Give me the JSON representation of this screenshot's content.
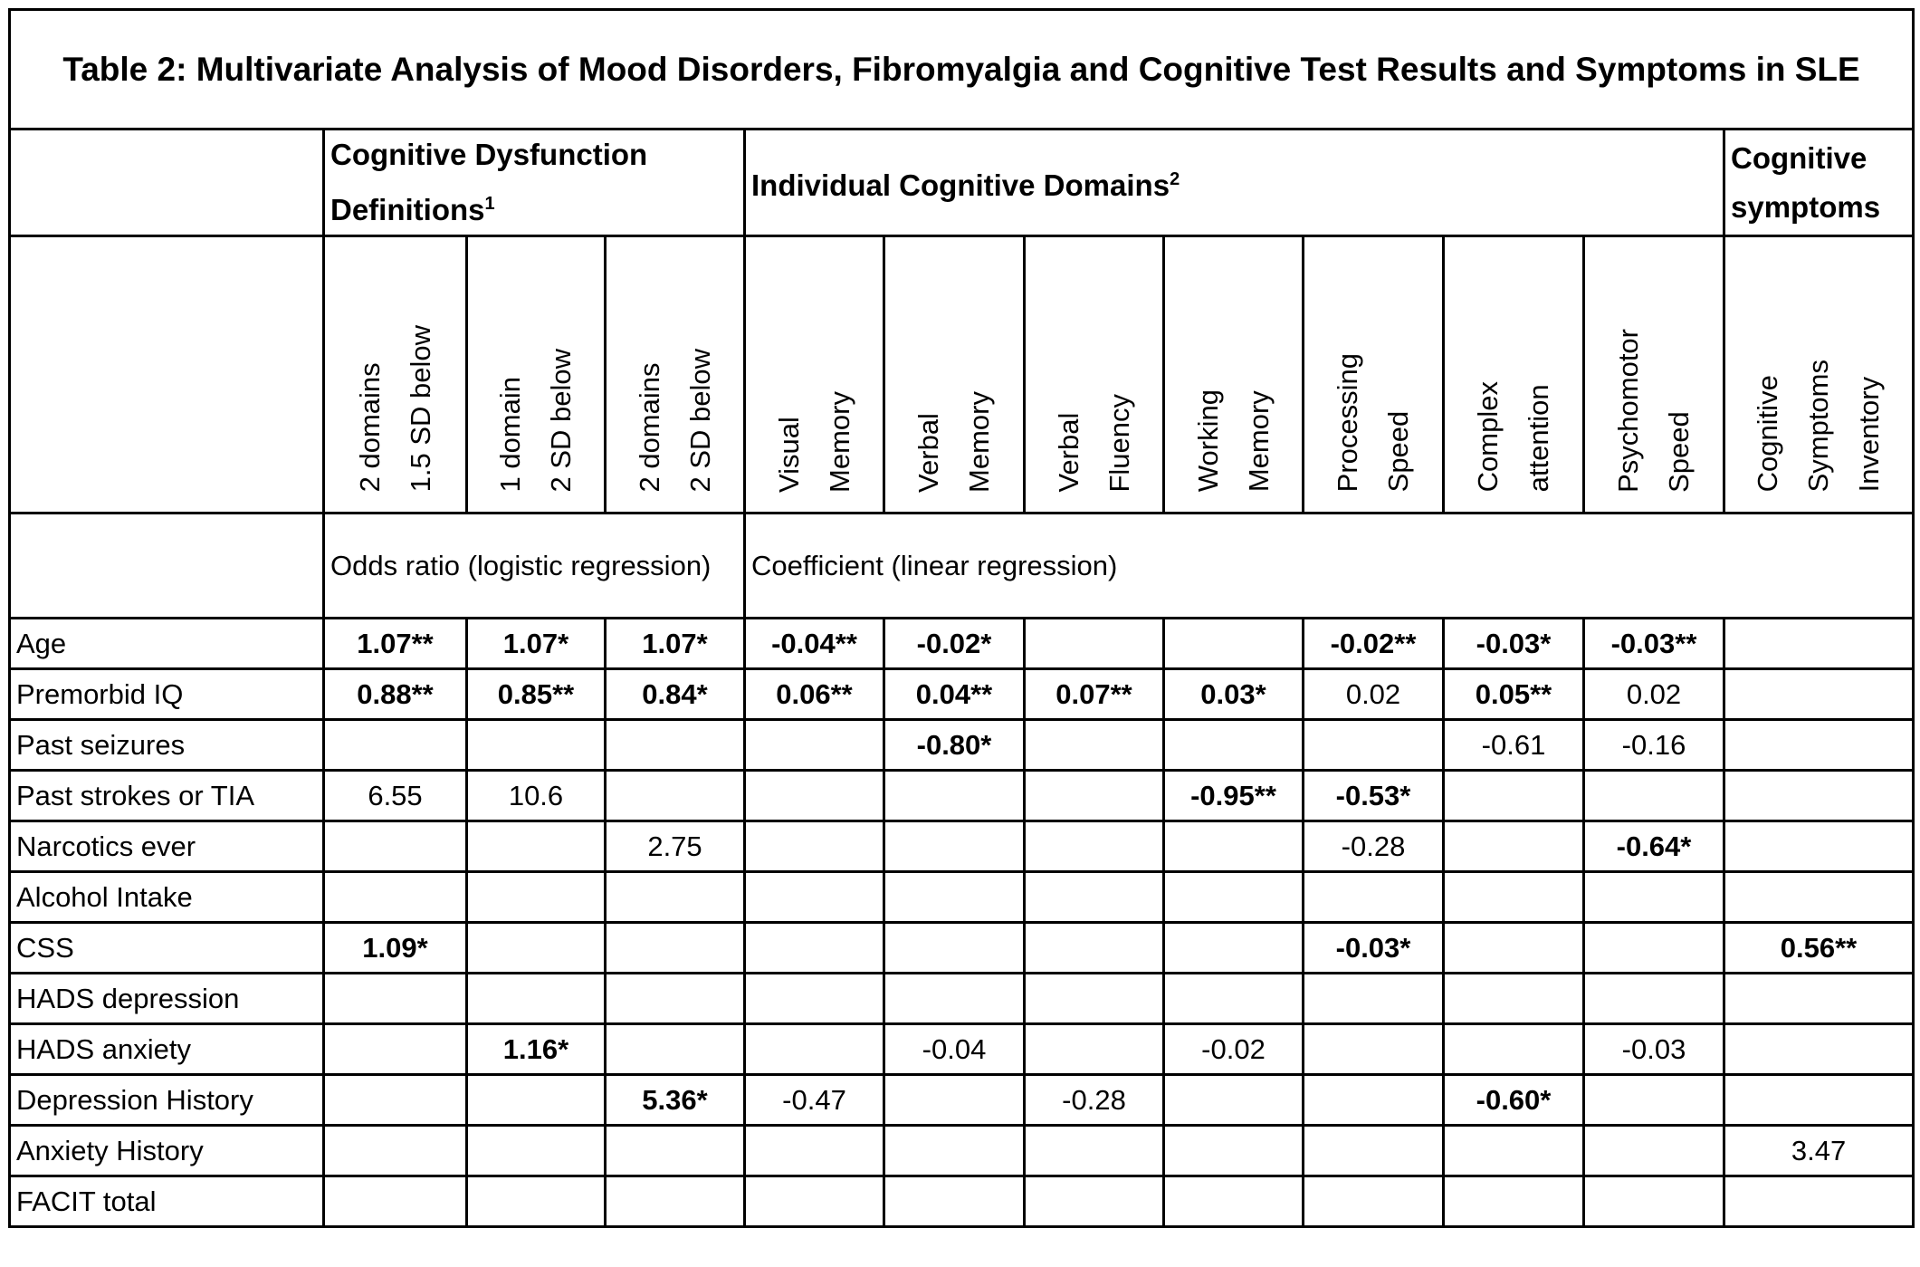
{
  "title": "Table 2: Multivariate Analysis of Mood Disorders, Fibromyalgia and Cognitive Test Results and Symptoms in SLE",
  "groups": [
    {
      "label": "Cognitive Dysfunction Definitions",
      "sup": "1",
      "span": 3
    },
    {
      "label": "Individual Cognitive Domains",
      "sup": "2",
      "span": 7
    },
    {
      "label": "Cognitive symptoms",
      "sup": "",
      "span": 1
    }
  ],
  "columns": [
    [
      "2 domains",
      "1.5 SD below"
    ],
    [
      "1 domain",
      "2 SD below"
    ],
    [
      "2 domains",
      "2 SD below"
    ],
    [
      "Visual",
      "Memory"
    ],
    [
      "Verbal",
      "Memory"
    ],
    [
      "Verbal",
      "Fluency"
    ],
    [
      "Working",
      "Memory"
    ],
    [
      "Processing",
      "Speed"
    ],
    [
      "Complex",
      "attention"
    ],
    [
      "Psychomotor",
      "Speed"
    ],
    [
      "Cognitive",
      "Symptoms",
      "Inventory"
    ]
  ],
  "methods": [
    {
      "label": "Odds ratio (logistic regression)",
      "span": 3
    },
    {
      "label": "Coefficient (linear regression)",
      "span": 8
    }
  ],
  "rows": [
    {
      "label": "Age",
      "cells": [
        {
          "v": "1.07**",
          "b": true
        },
        {
          "v": "1.07*",
          "b": true
        },
        {
          "v": "1.07*",
          "b": true
        },
        {
          "v": "-0.04**",
          "b": true
        },
        {
          "v": "-0.02*",
          "b": true
        },
        {
          "v": ""
        },
        {
          "v": ""
        },
        {
          "v": "-0.02**",
          "b": true
        },
        {
          "v": "-0.03*",
          "b": true
        },
        {
          "v": "-0.03**",
          "b": true
        },
        {
          "v": ""
        }
      ]
    },
    {
      "label": "Premorbid IQ",
      "cells": [
        {
          "v": "0.88**",
          "b": true
        },
        {
          "v": "0.85**",
          "b": true
        },
        {
          "v": "0.84*",
          "b": true
        },
        {
          "v": "0.06**",
          "b": true
        },
        {
          "v": "0.04**",
          "b": true
        },
        {
          "v": "0.07**",
          "b": true
        },
        {
          "v": "0.03*",
          "b": true
        },
        {
          "v": "0.02"
        },
        {
          "v": "0.05**",
          "b": true
        },
        {
          "v": "0.02"
        },
        {
          "v": ""
        }
      ]
    },
    {
      "label": "Past seizures",
      "cells": [
        {
          "v": ""
        },
        {
          "v": ""
        },
        {
          "v": ""
        },
        {
          "v": ""
        },
        {
          "v": "-0.80*",
          "b": true
        },
        {
          "v": ""
        },
        {
          "v": ""
        },
        {
          "v": ""
        },
        {
          "v": "-0.61"
        },
        {
          "v": "-0.16"
        },
        {
          "v": ""
        }
      ]
    },
    {
      "label": "Past strokes or TIA",
      "cells": [
        {
          "v": "6.55"
        },
        {
          "v": "10.6"
        },
        {
          "v": ""
        },
        {
          "v": ""
        },
        {
          "v": ""
        },
        {
          "v": ""
        },
        {
          "v": "-0.95**",
          "b": true
        },
        {
          "v": "-0.53*",
          "b": true
        },
        {
          "v": ""
        },
        {
          "v": ""
        },
        {
          "v": ""
        }
      ]
    },
    {
      "label": "Narcotics ever",
      "cells": [
        {
          "v": ""
        },
        {
          "v": ""
        },
        {
          "v": "2.75"
        },
        {
          "v": ""
        },
        {
          "v": ""
        },
        {
          "v": ""
        },
        {
          "v": ""
        },
        {
          "v": "-0.28"
        },
        {
          "v": ""
        },
        {
          "v": "-0.64*",
          "b": true
        },
        {
          "v": ""
        }
      ]
    },
    {
      "label": "Alcohol Intake",
      "cells": [
        {
          "v": ""
        },
        {
          "v": ""
        },
        {
          "v": ""
        },
        {
          "v": ""
        },
        {
          "v": ""
        },
        {
          "v": ""
        },
        {
          "v": ""
        },
        {
          "v": ""
        },
        {
          "v": ""
        },
        {
          "v": ""
        },
        {
          "v": ""
        }
      ]
    },
    {
      "label": "CSS",
      "cells": [
        {
          "v": "1.09*",
          "b": true
        },
        {
          "v": ""
        },
        {
          "v": ""
        },
        {
          "v": ""
        },
        {
          "v": ""
        },
        {
          "v": ""
        },
        {
          "v": ""
        },
        {
          "v": "-0.03*",
          "b": true
        },
        {
          "v": ""
        },
        {
          "v": ""
        },
        {
          "v": "0.56**",
          "b": true
        }
      ]
    },
    {
      "label": "HADS depression",
      "cells": [
        {
          "v": ""
        },
        {
          "v": ""
        },
        {
          "v": ""
        },
        {
          "v": ""
        },
        {
          "v": ""
        },
        {
          "v": ""
        },
        {
          "v": ""
        },
        {
          "v": ""
        },
        {
          "v": ""
        },
        {
          "v": ""
        },
        {
          "v": ""
        }
      ]
    },
    {
      "label": "HADS anxiety",
      "cells": [
        {
          "v": ""
        },
        {
          "v": "1.16*",
          "b": true
        },
        {
          "v": ""
        },
        {
          "v": ""
        },
        {
          "v": "-0.04"
        },
        {
          "v": ""
        },
        {
          "v": "-0.02"
        },
        {
          "v": ""
        },
        {
          "v": ""
        },
        {
          "v": "-0.03"
        },
        {
          "v": ""
        }
      ]
    },
    {
      "label": "Depression History",
      "cells": [
        {
          "v": ""
        },
        {
          "v": ""
        },
        {
          "v": "5.36*",
          "b": true
        },
        {
          "v": "-0.47"
        },
        {
          "v": ""
        },
        {
          "v": "-0.28"
        },
        {
          "v": ""
        },
        {
          "v": ""
        },
        {
          "v": "-0.60*",
          "b": true
        },
        {
          "v": ""
        },
        {
          "v": ""
        }
      ]
    },
    {
      "label": "Anxiety History",
      "cells": [
        {
          "v": ""
        },
        {
          "v": ""
        },
        {
          "v": ""
        },
        {
          "v": ""
        },
        {
          "v": ""
        },
        {
          "v": ""
        },
        {
          "v": ""
        },
        {
          "v": ""
        },
        {
          "v": ""
        },
        {
          "v": ""
        },
        {
          "v": "3.47"
        }
      ]
    },
    {
      "label": "FACIT total",
      "cells": [
        {
          "v": ""
        },
        {
          "v": ""
        },
        {
          "v": ""
        },
        {
          "v": ""
        },
        {
          "v": ""
        },
        {
          "v": ""
        },
        {
          "v": ""
        },
        {
          "v": ""
        },
        {
          "v": ""
        },
        {
          "v": ""
        },
        {
          "v": ""
        }
      ]
    }
  ]
}
